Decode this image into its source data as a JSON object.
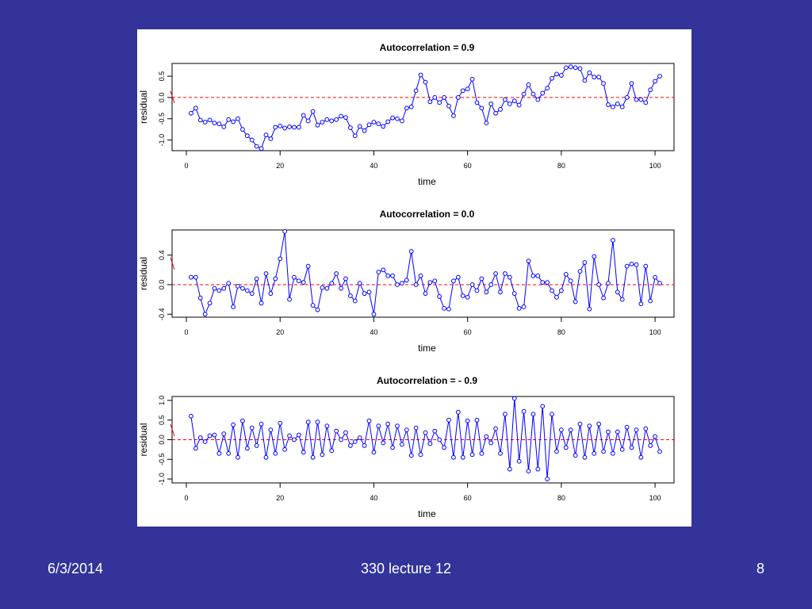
{
  "slide": {
    "date": "6/3/2014",
    "title": "330 lecture 12",
    "page_number": "8"
  },
  "colors": {
    "background": "#333399",
    "points": "#0000ff",
    "reference_line": "#ff0000",
    "footer_text": "#ffffff"
  },
  "chart_data": [
    {
      "type": "line",
      "title": "Autocorrelation = 0.9",
      "xlabel": "time",
      "ylabel": "residual",
      "xlim": [
        0,
        101
      ],
      "ylim": [
        -1.25,
        0.8
      ],
      "xticks": [
        0,
        20,
        40,
        60,
        80,
        100
      ],
      "yticks": [
        -1.0,
        -0.5,
        0.0,
        0.5
      ],
      "ytick_labels": [
        "-1.0",
        "-0.5",
        "0.0",
        "0.5"
      ],
      "reference_line": 0,
      "x": [
        1,
        2,
        3,
        4,
        5,
        6,
        7,
        8,
        9,
        10,
        11,
        12,
        13,
        14,
        15,
        16,
        17,
        18,
        19,
        20,
        21,
        22,
        23,
        24,
        25,
        26,
        27,
        28,
        29,
        30,
        31,
        32,
        33,
        34,
        35,
        36,
        37,
        38,
        39,
        40,
        41,
        42,
        43,
        44,
        45,
        46,
        47,
        48,
        49,
        50,
        51,
        52,
        53,
        54,
        55,
        56,
        57,
        58,
        59,
        60,
        61,
        62,
        63,
        64,
        65,
        66,
        67,
        68,
        69,
        70,
        71,
        72,
        73,
        74,
        75,
        76,
        77,
        78,
        79,
        80,
        81,
        82,
        83,
        84,
        85,
        86,
        87,
        88,
        89,
        90,
        91,
        92,
        93,
        94,
        95,
        96,
        97,
        98,
        99,
        100,
        101
      ],
      "values": [
        -0.37,
        -0.25,
        -0.53,
        -0.58,
        -0.53,
        -0.6,
        -0.62,
        -0.69,
        -0.52,
        -0.57,
        -0.5,
        -0.75,
        -0.9,
        -1.0,
        -1.15,
        -1.2,
        -0.88,
        -0.97,
        -0.7,
        -0.67,
        -0.72,
        -0.69,
        -0.7,
        -0.7,
        -0.42,
        -0.55,
        -0.33,
        -0.65,
        -0.58,
        -0.52,
        -0.55,
        -0.52,
        -0.44,
        -0.47,
        -0.71,
        -0.9,
        -0.68,
        -0.78,
        -0.64,
        -0.58,
        -0.62,
        -0.68,
        -0.57,
        -0.48,
        -0.5,
        -0.55,
        -0.25,
        -0.22,
        0.16,
        0.53,
        0.36,
        -0.1,
        0.0,
        -0.12,
        0.0,
        -0.2,
        -0.43,
        0.0,
        0.16,
        0.2,
        0.43,
        -0.12,
        -0.25,
        -0.6,
        -0.15,
        -0.37,
        -0.28,
        -0.05,
        -0.15,
        -0.08,
        -0.18,
        0.08,
        0.3,
        0.08,
        -0.05,
        0.1,
        0.22,
        0.45,
        0.55,
        0.52,
        0.7,
        0.72,
        0.7,
        0.68,
        0.4,
        0.58,
        0.48,
        0.48,
        0.33,
        -0.17,
        -0.22,
        -0.15,
        -0.22,
        0.0,
        0.33,
        -0.05,
        -0.05,
        -0.12,
        0.18,
        0.38,
        0.5
      ]
    },
    {
      "type": "line",
      "title": "Autocorrelation = 0.0",
      "xlabel": "time",
      "ylabel": "residual",
      "xlim": [
        0,
        101
      ],
      "ylim": [
        -0.44,
        0.74
      ],
      "xticks": [
        0,
        20,
        40,
        60,
        80,
        100
      ],
      "yticks": [
        -0.4,
        0.0,
        0.4
      ],
      "ytick_labels": [
        "-0.4",
        "0.0",
        "0.4"
      ],
      "reference_line": 0,
      "x": [
        1,
        2,
        3,
        4,
        5,
        6,
        7,
        8,
        9,
        10,
        11,
        12,
        13,
        14,
        15,
        16,
        17,
        18,
        19,
        20,
        21,
        22,
        23,
        24,
        25,
        26,
        27,
        28,
        29,
        30,
        31,
        32,
        33,
        34,
        35,
        36,
        37,
        38,
        39,
        40,
        41,
        42,
        43,
        44,
        45,
        46,
        47,
        48,
        49,
        50,
        51,
        52,
        53,
        54,
        55,
        56,
        57,
        58,
        59,
        60,
        61,
        62,
        63,
        64,
        65,
        66,
        67,
        68,
        69,
        70,
        71,
        72,
        73,
        74,
        75,
        76,
        77,
        78,
        79,
        80,
        81,
        82,
        83,
        84,
        85,
        86,
        87,
        88,
        89,
        90,
        91,
        92,
        93,
        94,
        95,
        96,
        97,
        98,
        99,
        100,
        101
      ],
      "values": [
        0.1,
        0.1,
        -0.18,
        -0.4,
        -0.25,
        -0.05,
        -0.08,
        -0.05,
        0.02,
        -0.3,
        -0.02,
        -0.05,
        -0.08,
        -0.12,
        0.08,
        -0.25,
        0.15,
        -0.12,
        0.08,
        0.35,
        0.72,
        -0.2,
        0.1,
        0.05,
        0.03,
        0.25,
        -0.28,
        -0.34,
        -0.04,
        -0.05,
        0.02,
        0.15,
        -0.05,
        0.08,
        -0.15,
        -0.22,
        0.02,
        -0.12,
        -0.1,
        -0.4,
        0.17,
        0.2,
        0.12,
        0.12,
        0.0,
        0.02,
        0.06,
        0.45,
        0.0,
        0.12,
        -0.12,
        0.03,
        0.05,
        -0.16,
        -0.32,
        -0.33,
        0.05,
        0.1,
        -0.15,
        -0.17,
        0.0,
        -0.08,
        0.08,
        -0.1,
        0.0,
        0.15,
        -0.1,
        0.15,
        0.1,
        -0.12,
        -0.32,
        -0.3,
        0.32,
        0.12,
        0.12,
        0.03,
        0.03,
        -0.08,
        -0.17,
        -0.08,
        0.14,
        0.05,
        -0.23,
        0.18,
        0.3,
        -0.33,
        0.38,
        0.0,
        -0.18,
        0.02,
        0.6,
        -0.1,
        -0.2,
        0.25,
        0.28,
        0.27,
        -0.26,
        0.25,
        -0.22,
        0.1,
        0.02
      ]
    },
    {
      "type": "line",
      "title": "Autocorrelation = - 0.9",
      "xlabel": "time",
      "ylabel": "residual",
      "xlim": [
        0,
        101
      ],
      "ylim": [
        -1.1,
        1.1
      ],
      "xticks": [
        0,
        20,
        40,
        60,
        80,
        100
      ],
      "yticks": [
        -1.0,
        -0.5,
        0.0,
        0.5,
        1.0
      ],
      "ytick_labels": [
        "-1.0",
        "-0.5",
        "0.0",
        "0.5",
        "1.0"
      ],
      "reference_line": 0,
      "x": [
        1,
        2,
        3,
        4,
        5,
        6,
        7,
        8,
        9,
        10,
        11,
        12,
        13,
        14,
        15,
        16,
        17,
        18,
        19,
        20,
        21,
        22,
        23,
        24,
        25,
        26,
        27,
        28,
        29,
        30,
        31,
        32,
        33,
        34,
        35,
        36,
        37,
        38,
        39,
        40,
        41,
        42,
        43,
        44,
        45,
        46,
        47,
        48,
        49,
        50,
        51,
        52,
        53,
        54,
        55,
        56,
        57,
        58,
        59,
        60,
        61,
        62,
        63,
        64,
        65,
        66,
        67,
        68,
        69,
        70,
        71,
        72,
        73,
        74,
        75,
        76,
        77,
        78,
        79,
        80,
        81,
        82,
        83,
        84,
        85,
        86,
        87,
        88,
        89,
        90,
        91,
        92,
        93,
        94,
        95,
        96,
        97,
        98,
        99,
        100,
        101
      ],
      "values": [
        0.6,
        -0.22,
        0.05,
        -0.05,
        0.1,
        0.12,
        -0.35,
        0.15,
        -0.35,
        0.38,
        -0.45,
        0.48,
        -0.22,
        0.3,
        -0.15,
        0.4,
        -0.45,
        0.25,
        -0.35,
        0.42,
        -0.25,
        0.1,
        0.0,
        0.12,
        -0.32,
        0.45,
        -0.45,
        0.45,
        -0.38,
        0.35,
        -0.28,
        0.22,
        0.0,
        0.18,
        -0.15,
        -0.05,
        0.05,
        -0.15,
        0.48,
        -0.32,
        0.35,
        -0.08,
        0.4,
        -0.2,
        0.35,
        -0.12,
        0.25,
        -0.4,
        0.3,
        -0.38,
        0.18,
        -0.1,
        0.22,
        0.0,
        -0.2,
        0.5,
        -0.45,
        0.7,
        -0.45,
        0.48,
        -0.38,
        0.5,
        -0.35,
        0.08,
        -0.08,
        0.28,
        -0.35,
        0.65,
        -0.75,
        1.05,
        -0.55,
        0.72,
        -0.8,
        0.65,
        -0.75,
        0.85,
        -1.0,
        0.65,
        -0.3,
        0.25,
        -0.2,
        0.25,
        -0.4,
        0.4,
        -0.45,
        0.35,
        -0.35,
        0.4,
        -0.3,
        0.2,
        -0.35,
        0.2,
        -0.25,
        0.32,
        -0.2,
        0.25,
        -0.45,
        0.28,
        -0.15,
        0.08,
        -0.3
      ]
    }
  ]
}
